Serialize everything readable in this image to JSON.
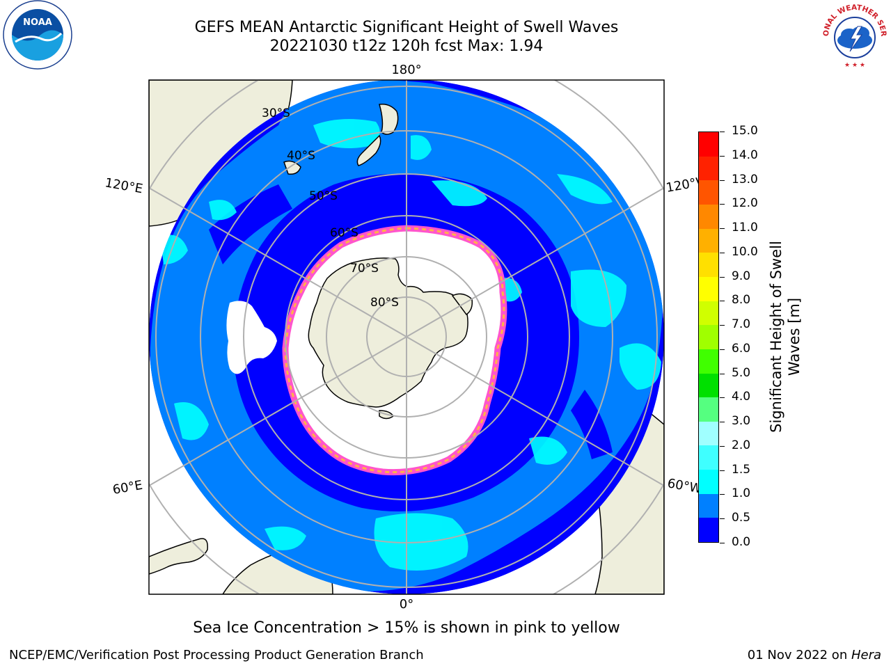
{
  "title": {
    "line1": "GEFS MEAN Antarctic Significant Height of Swell Waves",
    "line2": "20221030 t12z 120h fcst   Max: 1.94"
  },
  "map": {
    "projection": "south-polar-stereographic",
    "lon_labels": {
      "top": "180°",
      "bottom": "0°",
      "upper_left": "120°E",
      "lower_left": "60°E",
      "upper_right": "120°W",
      "lower_right": "60°W"
    },
    "lat_labels": [
      "30°S",
      "40°S",
      "50°S",
      "60°S",
      "70°S",
      "80°S"
    ],
    "colors": {
      "ocean_deep": "#0000ff",
      "ocean_mid": "#0080ff",
      "ocean_light": "#00ffff",
      "land": "#eeeedc",
      "ice": "#ffffff",
      "ice_edge": "#ff55cc",
      "ice_edge2": "#ffb347",
      "graticule": "#b0b0b0"
    }
  },
  "colorbar": {
    "label": "Significant Height of Swell Waves [m]",
    "ticks": [
      "0.0",
      "0.5",
      "1.0",
      "1.5",
      "2.0",
      "3.0",
      "4.0",
      "5.0",
      "6.0",
      "7.0",
      "8.0",
      "9.0",
      "10.0",
      "11.0",
      "12.0",
      "13.0",
      "14.0",
      "15.0"
    ],
    "colors": [
      "#0000ff",
      "#0080ff",
      "#00ffff",
      "#3fffff",
      "#a0ffff",
      "#55ff80",
      "#00e000",
      "#40ff00",
      "#a0ff00",
      "#d0ff00",
      "#ffff00",
      "#ffe000",
      "#ffb000",
      "#ff8800",
      "#ff5500",
      "#ff2200",
      "#ff0000"
    ]
  },
  "note": "Sea Ice Concentration > 15% is shown in pink to yellow",
  "footer": {
    "left": "NCEP/EMC/Verification Post Processing Product Generation Branch",
    "date": "01 Nov 2022 on ",
    "host": "Hera"
  },
  "logos": {
    "noaa_text": "NOAA",
    "nws_text": "NATIONAL WEATHER SERVICE"
  }
}
